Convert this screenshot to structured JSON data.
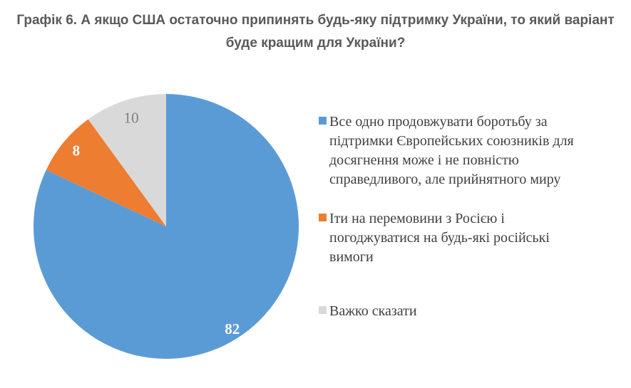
{
  "title": "Графік 6. А якщо США остаточно припинять будь-яку підтримку України, то який варіант буде кращим для України?",
  "colors": {
    "background": "#FFFFFF",
    "title_text": "#595959",
    "legend_text": "#404040",
    "series_blue": "#5B9BD5",
    "series_orange": "#ED7D31",
    "series_gray": "#D9D9D9"
  },
  "chart_data": {
    "type": "pie",
    "title": "Графік 6. А якщо США остаточно припинять будь-яку підтримку України, то який варіант буде кращим для України?",
    "units": "percent",
    "start_angle_deg": 0,
    "direction": "clockwise",
    "legend_position": "right",
    "grid": false,
    "slices": [
      {
        "label": "Все одно продовжувати боротьбу за підтримки Європейських союзників для досягнення може і не повністю справедливого, але прийнятного миру",
        "value": 82,
        "color": "#5B9BD5",
        "value_color": "#FFFFFF",
        "value_bold": true
      },
      {
        "label": "Іти на перемовини з Росією і погоджуватися на будь-які російські вимоги",
        "value": 8,
        "color": "#ED7D31",
        "value_color": "#FFFFFF",
        "value_bold": true
      },
      {
        "label": "Важко сказати",
        "value": 10,
        "color": "#D9D9D9",
        "value_color": "#7F7F7F",
        "value_bold": false
      }
    ]
  }
}
